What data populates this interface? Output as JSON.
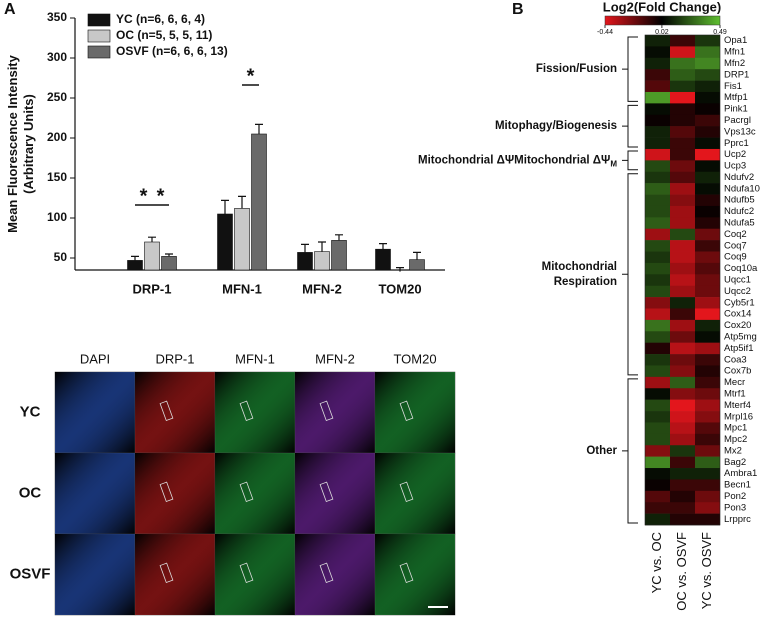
{
  "panel_labels": [
    "A",
    "B"
  ],
  "chart_data": [
    {
      "type": "bar",
      "ylabel": [
        "Mean Fluorescence Intensity",
        "(Arbitrary Units)"
      ],
      "categories": [
        "DRP-1",
        "MFN-1",
        "MFN-2",
        "TOM20"
      ],
      "series": [
        {
          "name": "YC (n=6, 6, 6, 4)",
          "color": "#111111",
          "values": [
            47,
            105,
            57,
            61
          ],
          "errors": [
            5,
            17,
            10,
            7
          ]
        },
        {
          "name": "OC (n=5, 5, 5, 11)",
          "color": "#c8c8c8",
          "values": [
            70,
            112,
            58,
            33
          ],
          "errors": [
            6,
            15,
            12,
            5
          ]
        },
        {
          "name": "OSVF (n=6, 6, 6, 13)",
          "color": "#6a6a6a",
          "values": [
            52,
            205,
            72,
            48
          ],
          "errors": [
            3,
            12,
            7,
            9
          ]
        }
      ],
      "annotations": [
        "*",
        "*",
        "*"
      ],
      "ylim": [
        35,
        350
      ],
      "yticks": [
        50,
        100,
        150,
        200,
        250,
        300,
        350
      ],
      "legend": "top-left"
    },
    {
      "type": "heatmap",
      "title": "Log2(Fold Change)",
      "clim": [
        -0.44,
        0.49
      ],
      "cticks": [
        -0.44,
        0.02,
        0.49
      ],
      "colormap": [
        "#e3161c",
        "#000000",
        "#5fbf30"
      ],
      "columns": [
        "YC vs. OC",
        "OC vs. OSVF",
        "YC vs. OSVF"
      ],
      "rows": [
        "Opa1",
        "Mfn1",
        "Mfn2",
        "DRP1",
        "Fis1",
        "Mtfp1",
        "Pink1",
        "Pacrgl",
        "Vps13c",
        "Pprc1",
        "Ucp2",
        "Ucp3",
        "Ndufv2",
        "Ndufa10",
        "Ndufb5",
        "Ndufc2",
        "Ndufa5",
        "Coq2",
        "Coq7",
        "Coq9",
        "Coq10a",
        "Uqcc1",
        "Uqcc2",
        "Cyb5r1",
        "Cox14",
        "Cox20",
        "Atp5mg",
        "Atp5if1",
        "Coa3",
        "Cox7b",
        "Mecr",
        "Mtrf1",
        "Mterf4",
        "Mrpl16",
        "Mpc1",
        "Mpc2",
        "Mx2",
        "Bag2",
        "Ambra1",
        "Becn1",
        "Pon2",
        "Pon3",
        "Lrpprc"
      ],
      "values": [
        [
          0.1,
          -0.1,
          0.15
        ],
        [
          0.05,
          -0.4,
          0.3
        ],
        [
          0.1,
          0.3,
          0.35
        ],
        [
          -0.1,
          0.25,
          0.2
        ],
        [
          -0.15,
          0.15,
          0.1
        ],
        [
          0.4,
          -0.44,
          0.05
        ],
        [
          0.05,
          -0.05,
          0.0
        ],
        [
          0.0,
          -0.05,
          -0.1
        ],
        [
          0.1,
          -0.15,
          -0.05
        ],
        [
          0.1,
          -0.1,
          0.05
        ],
        [
          -0.4,
          -0.1,
          -0.44
        ],
        [
          0.2,
          -0.2,
          0.05
        ],
        [
          0.15,
          -0.15,
          0.1
        ],
        [
          0.25,
          -0.3,
          0.05
        ],
        [
          0.2,
          -0.25,
          -0.05
        ],
        [
          0.2,
          -0.3,
          0.0
        ],
        [
          0.25,
          -0.3,
          -0.05
        ],
        [
          -0.3,
          0.2,
          -0.2
        ],
        [
          0.2,
          -0.35,
          -0.1
        ],
        [
          0.15,
          -0.35,
          -0.2
        ],
        [
          0.2,
          -0.3,
          -0.15
        ],
        [
          0.15,
          -0.35,
          -0.2
        ],
        [
          0.2,
          -0.3,
          -0.2
        ],
        [
          -0.25,
          0.1,
          -0.3
        ],
        [
          -0.35,
          -0.1,
          -0.44
        ],
        [
          0.3,
          -0.3,
          0.1
        ],
        [
          0.2,
          -0.2,
          0.05
        ],
        [
          -0.05,
          -0.35,
          -0.3
        ],
        [
          0.15,
          -0.2,
          -0.1
        ],
        [
          0.2,
          -0.25,
          -0.05
        ],
        [
          -0.3,
          0.25,
          -0.1
        ],
        [
          0.05,
          -0.25,
          -0.2
        ],
        [
          0.2,
          -0.44,
          -0.3
        ],
        [
          0.15,
          -0.4,
          -0.25
        ],
        [
          0.2,
          -0.35,
          -0.15
        ],
        [
          0.2,
          -0.3,
          -0.1
        ],
        [
          -0.25,
          0.15,
          -0.2
        ],
        [
          0.35,
          -0.1,
          0.25
        ],
        [
          0.05,
          0.1,
          0.1
        ],
        [
          0.0,
          -0.1,
          -0.1
        ],
        [
          -0.15,
          -0.05,
          -0.2
        ],
        [
          -0.1,
          -0.1,
          -0.25
        ],
        [
          0.1,
          -0.05,
          -0.05
        ]
      ],
      "groups": [
        {
          "label": [
            "Fission/Fusion"
          ],
          "rows": 6
        },
        {
          "label": [
            "Mitophagy/Biogenesis"
          ],
          "rows": 4
        },
        {
          "label": [
            "Mitochondrial ΔΨ"
          ],
          "subscript": "M",
          "rows": 2
        },
        {
          "label": [
            "Mitochondrial",
            "Respiration"
          ],
          "rows": 18
        },
        {
          "label": [
            "Other"
          ],
          "rows": 13
        }
      ]
    }
  ],
  "micrograph": {
    "columns": [
      {
        "label": "DAPI",
        "color": "#2c5fd6"
      },
      {
        "label": "DRP-1",
        "color": "#d42020"
      },
      {
        "label": "MFN-1",
        "color": "#22b040"
      },
      {
        "label": "MFN-2",
        "color": "#8a2ec0"
      },
      {
        "label": "TOM20",
        "color": "#22b040"
      }
    ],
    "rows": [
      "YC",
      "OC",
      "OSVF"
    ]
  }
}
